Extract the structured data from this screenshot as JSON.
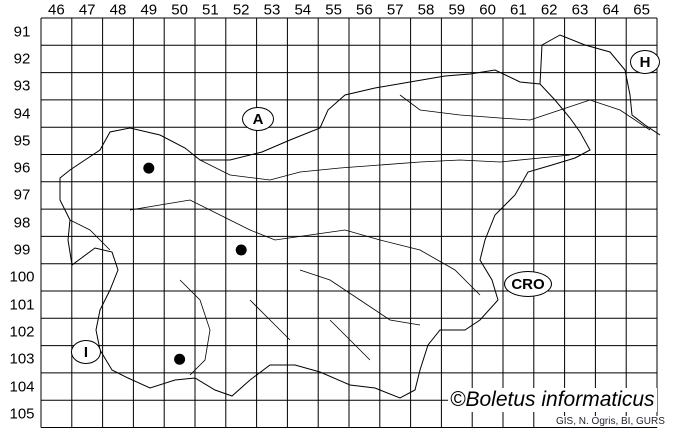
{
  "map": {
    "columns": [
      "46",
      "47",
      "48",
      "49",
      "50",
      "51",
      "52",
      "53",
      "54",
      "55",
      "56",
      "57",
      "58",
      "59",
      "60",
      "61",
      "62",
      "63",
      "64",
      "65"
    ],
    "rows": [
      "91",
      "92",
      "93",
      "94",
      "95",
      "96",
      "97",
      "98",
      "99",
      "100",
      "101",
      "102",
      "103",
      "104",
      "105"
    ],
    "country_labels": [
      {
        "id": "austria",
        "text": "A"
      },
      {
        "id": "hungary",
        "text": "H"
      },
      {
        "id": "croatia",
        "text": "CRO"
      },
      {
        "id": "italy",
        "text": "I"
      }
    ],
    "records": [
      {
        "col": "49",
        "row": "96"
      },
      {
        "col": "52",
        "row": "99"
      },
      {
        "col": "50",
        "row": "103"
      }
    ],
    "copyright": "©Boletus informaticus",
    "source": "GIS, N. Ogris, BI, GURS",
    "colors": {
      "grid": "#000000",
      "dot": "#000000",
      "background": "#ffffff"
    }
  }
}
